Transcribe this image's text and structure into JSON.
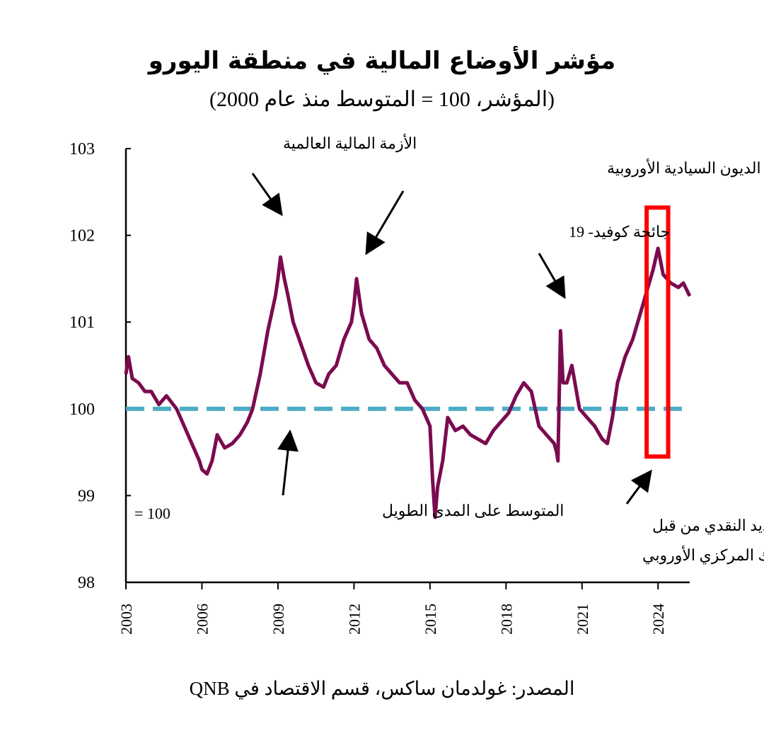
{
  "chart_data": {
    "type": "line",
    "title": "مؤشر الأوضاع المالية في منطقة اليورو",
    "subtitle": "(المؤشر، 100 = المتوسط منذ عام 2000)",
    "source": "المصدر: غولدمان ساكس، قسم الاقتصاد في QNB",
    "xlim": [
      2003.0,
      2025.25
    ],
    "ylim": [
      98,
      103
    ],
    "y_ticks": [
      "98",
      "99",
      "100",
      "101",
      "102",
      "103"
    ],
    "x_ticks": [
      "2003",
      "2006",
      "2009",
      "2012",
      "2015",
      "2018",
      "2021",
      "2024"
    ],
    "grid": false,
    "reference_line": {
      "value": 100,
      "color": "#4BACC6"
    },
    "series": [
      {
        "color": "#7B0B4F",
        "x": [
          2003.0,
          2003.1,
          2003.25,
          2003.5,
          2003.75,
          2004.0,
          2004.3,
          2004.6,
          2005.0,
          2005.3,
          2005.6,
          2005.9,
          2006.0,
          2006.2,
          2006.4,
          2006.6,
          2006.9,
          2007.2,
          2007.5,
          2007.8,
          2008.0,
          2008.3,
          2008.6,
          2008.9,
          2009.0,
          2009.1,
          2009.25,
          2009.4,
          2009.6,
          2009.9,
          2010.2,
          2010.5,
          2010.8,
          2011.0,
          2011.3,
          2011.6,
          2011.9,
          2012.0,
          2012.1,
          2012.3,
          2012.6,
          2012.9,
          2013.2,
          2013.5,
          2013.8,
          2014.1,
          2014.4,
          2014.7,
          2015.0,
          2015.1,
          2015.2,
          2015.3,
          2015.5,
          2015.7,
          2016.0,
          2016.3,
          2016.6,
          2016.9,
          2017.2,
          2017.5,
          2017.8,
          2018.1,
          2018.4,
          2018.7,
          2019.0,
          2019.3,
          2019.6,
          2019.9,
          2020.0,
          2020.05,
          2020.15,
          2020.25,
          2020.4,
          2020.6,
          2020.9,
          2021.2,
          2021.5,
          2021.8,
          2022.0,
          2022.2,
          2022.4,
          2022.7,
          2023.0,
          2023.3,
          2023.6,
          2023.8,
          2024.0,
          2024.2,
          2024.5,
          2024.8,
          2025.0,
          2025.25
        ],
        "y": [
          100.4,
          100.6,
          100.35,
          100.3,
          100.2,
          100.2,
          100.05,
          100.15,
          100.0,
          99.8,
          99.6,
          99.4,
          99.3,
          99.25,
          99.4,
          99.7,
          99.55,
          99.6,
          99.7,
          99.85,
          100.0,
          100.4,
          100.9,
          101.3,
          101.5,
          101.75,
          101.5,
          101.3,
          101.0,
          100.75,
          100.5,
          100.3,
          100.25,
          100.4,
          100.5,
          100.8,
          101.0,
          101.2,
          101.5,
          101.1,
          100.8,
          100.7,
          100.5,
          100.4,
          100.3,
          100.3,
          100.1,
          100.0,
          99.8,
          99.2,
          98.75,
          99.1,
          99.4,
          99.9,
          99.75,
          99.8,
          99.7,
          99.65,
          99.6,
          99.75,
          99.85,
          99.95,
          100.15,
          100.3,
          100.2,
          99.8,
          99.7,
          99.6,
          99.5,
          99.4,
          100.9,
          100.3,
          100.3,
          100.5,
          100.0,
          99.9,
          99.8,
          99.65,
          99.6,
          99.9,
          100.3,
          100.6,
          100.8,
          101.1,
          101.4,
          101.6,
          101.85,
          101.55,
          101.45,
          101.4,
          101.45,
          101.3
        ]
      }
    ],
    "annotations": [
      {
        "text": "الأزمة المالية العالمية"
      },
      {
        "text": "أزمة الديون السيادية الأوروبية"
      },
      {
        "text": "جائحة كوفيد- 19"
      },
      {
        "text": "المتوسط على المدى الطويل"
      },
      {
        "text": "= 100"
      },
      {
        "text": "دورة التشديد النقدي من قبل"
      },
      {
        "text": "البنك المركزي الأوروبي"
      }
    ],
    "highlight": {
      "x_range": [
        2023.55,
        2024.4
      ],
      "y_range": [
        99.45,
        102.32
      ],
      "color": "#FF0000"
    }
  }
}
